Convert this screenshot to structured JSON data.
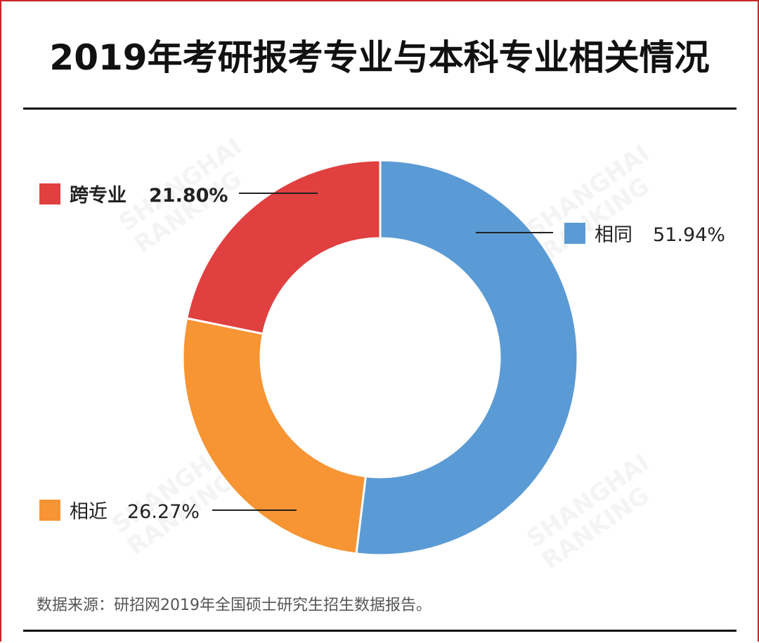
{
  "page": {
    "title": "2019年考研报考专业与本科专业相关情况",
    "source_note": "数据来源：研招网2019年全国硕士研究生招生数据报告。",
    "watermark": [
      "SHANGHAI",
      "RANKING"
    ]
  },
  "chart_data": {
    "type": "pie",
    "variant": "donut",
    "title": "2019年考研报考专业与本科专业相关情况",
    "unit": "%",
    "slices": [
      {
        "label": "相同",
        "value": 51.94,
        "value_label": "51.94%",
        "color": "#5b9bd5",
        "legend_side": "right"
      },
      {
        "label": "相近",
        "value": 26.27,
        "value_label": "26.27%",
        "color": "#f79433",
        "legend_side": "left-bottom"
      },
      {
        "label": "跨专业",
        "value": 21.8,
        "value_label": "21.80%",
        "color": "#e0403f",
        "legend_side": "left-top"
      }
    ],
    "start_direction": "12 o'clock",
    "order": "clockwise"
  }
}
